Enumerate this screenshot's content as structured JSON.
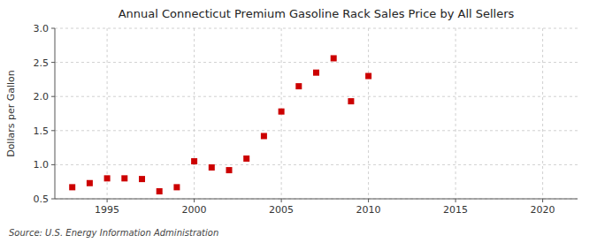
{
  "chart_data": {
    "type": "scatter",
    "title": "Annual Connecticut Premium Gasoline Rack Sales Price by All Sellers",
    "ylabel": "Dollars per Gallon",
    "annotations": [
      "Source: U.S. Energy Information Administration"
    ],
    "x": [
      1993,
      1994,
      1995,
      1996,
      1997,
      1998,
      1999,
      2000,
      2001,
      2002,
      2003,
      2004,
      2005,
      2006,
      2007,
      2008,
      2009,
      2010
    ],
    "values": [
      0.67,
      0.73,
      0.8,
      0.8,
      0.79,
      0.61,
      0.67,
      1.05,
      0.96,
      0.92,
      1.09,
      1.42,
      1.78,
      2.15,
      2.35,
      2.56,
      1.93,
      2.3
    ],
    "color": "#cc0000",
    "marker": "square",
    "xlim": [
      1992,
      2022
    ],
    "ylim": [
      0.5,
      3.0
    ],
    "xticks": [
      1995,
      2000,
      2005,
      2010,
      2015,
      2020
    ],
    "yticks": [
      0.5,
      {
        "value": 1.0,
        "label": "1.0"
      },
      1.5,
      {
        "value": 2.0,
        "label": "2.0"
      },
      2.5,
      {
        "value": 3.0,
        "label": "3.0"
      }
    ],
    "grid": true
  }
}
